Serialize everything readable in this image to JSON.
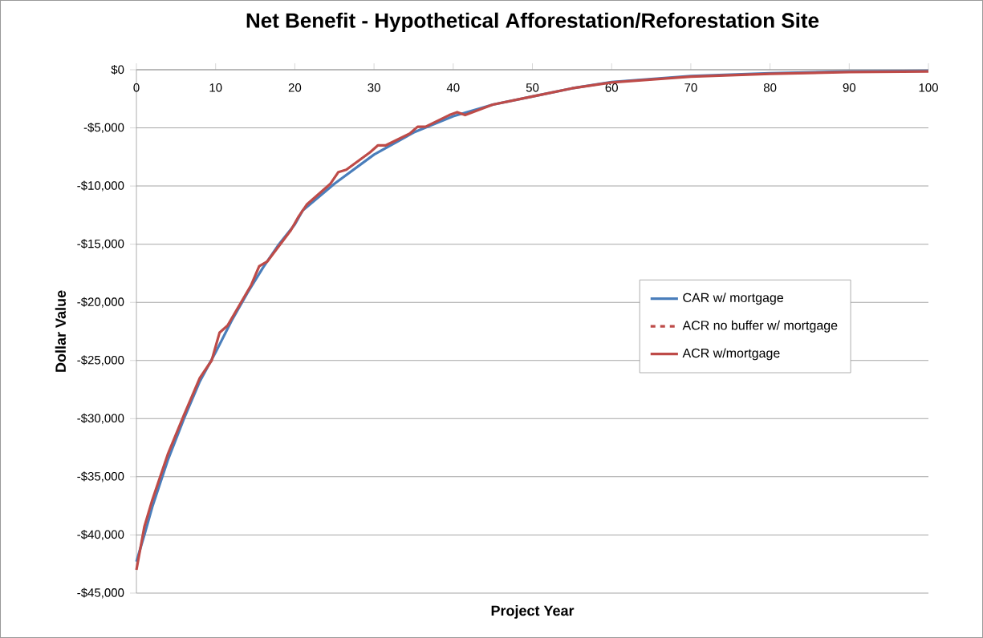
{
  "chart_data": {
    "type": "line",
    "title": "Net Benefit - Hypothetical Afforestation/Reforestation Site",
    "xlabel": "Project Year",
    "ylabel": "Dollar Value",
    "xlim": [
      0,
      100
    ],
    "xticks": [
      0,
      10,
      20,
      30,
      40,
      50,
      60,
      70,
      80,
      90,
      100
    ],
    "ylim": [
      -45000,
      0
    ],
    "yticks": [
      {
        "value": -45000,
        "label": "-$45,000"
      },
      {
        "value": -40000,
        "label": "-$40,000"
      },
      {
        "value": -35000,
        "label": "-$35,000"
      },
      {
        "value": -30000,
        "label": "-$30,000"
      },
      {
        "value": -25000,
        "label": "-$25,000"
      },
      {
        "value": -20000,
        "label": "-$20,000"
      },
      {
        "value": -15000,
        "label": "-$15,000"
      },
      {
        "value": -10000,
        "label": "-$10,000"
      },
      {
        "value": -5000,
        "label": "-$5,000"
      },
      {
        "value": 0,
        "label": "$0"
      }
    ],
    "grid": "y",
    "legend": "right",
    "marker": "none",
    "series": [
      {
        "name": "CAR w/ mortgage",
        "color": "#4a7ebb",
        "line_style": "solid",
        "x": [
          0,
          1,
          2,
          4,
          6,
          8,
          10,
          12,
          14,
          16,
          18,
          20,
          21,
          25,
          30,
          35,
          40,
          45,
          50,
          55,
          60,
          70,
          80,
          90,
          100
        ],
        "values": [
          -42300,
          -40000,
          -37600,
          -33500,
          -30000,
          -26800,
          -24300,
          -21600,
          -19200,
          -17000,
          -15000,
          -13300,
          -12100,
          -9800,
          -7300,
          -5400,
          -4000,
          -3000,
          -2300,
          -1600,
          -1050,
          -550,
          -300,
          -150,
          -100
        ]
      },
      {
        "name": "ACR no buffer w/ mortgage",
        "color": "#be4b48",
        "line_style": "dashed"
      },
      {
        "name": "ACR w/mortgage",
        "color": "#be4b48",
        "line_style": "solid",
        "x": [
          0,
          1,
          2,
          4,
          6,
          8,
          9.5,
          10.5,
          11.5,
          14.5,
          15.5,
          16.5,
          19.5,
          20.5,
          21.5,
          24.5,
          25.5,
          26.5,
          29.5,
          30.5,
          31.5,
          34.5,
          35.5,
          36.5,
          39.5,
          40.5,
          41.5,
          45,
          50,
          55,
          60,
          70,
          80,
          90,
          100
        ],
        "values": [
          -43000,
          -39300,
          -37000,
          -33000,
          -29700,
          -26500,
          -25000,
          -22600,
          -22000,
          -18500,
          -16900,
          -16500,
          -13800,
          -12600,
          -11600,
          -9800,
          -8800,
          -8600,
          -7100,
          -6500,
          -6500,
          -5500,
          -4900,
          -4900,
          -3900,
          -3650,
          -3900,
          -3000,
          -2300,
          -1600,
          -1100,
          -600,
          -350,
          -200,
          -150
        ]
      }
    ]
  }
}
